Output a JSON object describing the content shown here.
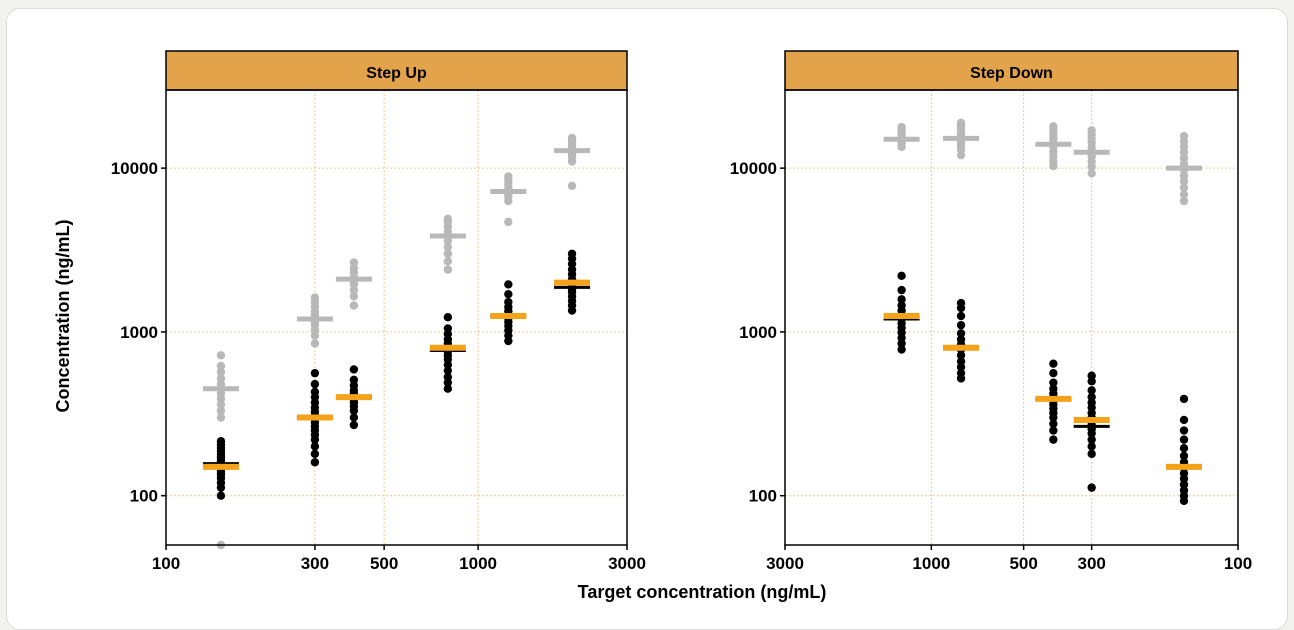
{
  "colors": {
    "strip": "#e2a34a",
    "grid": "#f0c78d",
    "black": "#000000",
    "grey": "#b8b8b8",
    "median_orange": "#f5a21b"
  },
  "axes": {
    "xlabel": "Target concentration (ng/mL)",
    "ylabel": "Concentration (ng/mL)"
  },
  "chart_data": [
    {
      "type": "scatter",
      "title": "Step Up",
      "x_scale": "log",
      "y_scale": "log",
      "xlim": [
        100,
        3000
      ],
      "ylim": [
        50,
        30000
      ],
      "x_ticks": [
        100,
        300,
        500,
        1000,
        3000
      ],
      "y_ticks": [
        100,
        1000,
        10000
      ],
      "grid": true,
      "groups": [
        {
          "target": 150,
          "black_points": [
            100,
            112,
            120,
            128,
            135,
            140,
            145,
            150,
            155,
            160,
            165,
            172,
            180,
            188,
            196,
            205,
            215
          ],
          "grey_points": [
            50,
            300,
            330,
            360,
            390,
            420,
            450,
            480,
            520,
            570,
            620,
            720
          ],
          "black_median": 157,
          "grey_median": 450,
          "orange_mean": 150
        },
        {
          "target": 300,
          "black_points": [
            160,
            180,
            200,
            220,
            235,
            250,
            265,
            280,
            295,
            310,
            325,
            345,
            370,
            400,
            430,
            480,
            560
          ],
          "grey_points": [
            850,
            950,
            1030,
            1100,
            1150,
            1200,
            1260,
            1330,
            1420,
            1520,
            1620
          ],
          "black_median": 300,
          "grey_median": 1200,
          "orange_mean": 300
        },
        {
          "target": 400,
          "black_points": [
            270,
            300,
            330,
            350,
            370,
            385,
            400,
            420,
            440,
            470,
            510,
            590
          ],
          "grey_points": [
            1450,
            1650,
            1800,
            1950,
            2050,
            2150,
            2300,
            2450,
            2650
          ],
          "black_median": 400,
          "grey_median": 2100,
          "orange_mean": 400
        },
        {
          "target": 800,
          "black_points": [
            450,
            490,
            530,
            580,
            630,
            680,
            720,
            760,
            800,
            850,
            900,
            970,
            1050,
            1230
          ],
          "grey_points": [
            2400,
            2700,
            3000,
            3300,
            3600,
            3850,
            4100,
            4400,
            4700,
            4900
          ],
          "black_median": 770,
          "grey_median": 3850,
          "orange_mean": 800
        },
        {
          "target": 1250,
          "black_points": [
            880,
            950,
            1020,
            1090,
            1150,
            1210,
            1270,
            1340,
            1420,
            1520,
            1700,
            1950
          ],
          "grey_points": [
            4700,
            6300,
            6700,
            7000,
            7300,
            7600,
            8000,
            8500,
            8900
          ],
          "black_median": 1250,
          "grey_median": 7200,
          "orange_mean": 1250
        },
        {
          "target": 2000,
          "black_points": [
            1350,
            1450,
            1550,
            1650,
            1750,
            1830,
            1900,
            2000,
            2100,
            2250,
            2400,
            2600,
            2800,
            3000
          ],
          "grey_points": [
            7800,
            11000,
            11700,
            12300,
            12900,
            13400,
            14000,
            14700,
            15300
          ],
          "black_median": 1870,
          "grey_median": 12800,
          "orange_mean": 2000
        }
      ]
    },
    {
      "type": "scatter",
      "title": "Step Down",
      "x_scale": "log",
      "y_scale": "log",
      "x_reversed": true,
      "xlim": [
        3000,
        100
      ],
      "ylim": [
        50,
        30000
      ],
      "x_ticks": [
        3000,
        1000,
        500,
        300,
        100
      ],
      "y_ticks": [
        100,
        1000,
        10000
      ],
      "grid": true,
      "groups": [
        {
          "target": 1250,
          "black_points": [
            780,
            850,
            920,
            990,
            1060,
            1130,
            1200,
            1270,
            1350,
            1450,
            1580,
            1800,
            2200
          ],
          "grey_points": [
            13500,
            14200,
            14800,
            15300,
            15800,
            16400,
            17200,
            17800
          ],
          "black_median": 1200,
          "grey_median": 15000,
          "orange_mean": 1250
        },
        {
          "target": 800,
          "black_points": [
            520,
            560,
            610,
            660,
            720,
            780,
            840,
            900,
            980,
            1100,
            1250,
            1400,
            1500
          ],
          "grey_points": [
            12000,
            13000,
            13800,
            14500,
            15200,
            15900,
            16700,
            17500,
            18300,
            18900
          ],
          "black_median": 800,
          "grey_median": 15200,
          "orange_mean": 800
        },
        {
          "target": 400,
          "black_points": [
            220,
            250,
            275,
            300,
            320,
            340,
            360,
            380,
            400,
            420,
            450,
            490,
            560,
            640
          ],
          "grey_points": [
            10300,
            11000,
            11800,
            12600,
            13500,
            14300,
            15200,
            16000,
            17000,
            18000
          ],
          "black_median": 385,
          "grey_median": 14000,
          "orange_mean": 390
        },
        {
          "target": 300,
          "black_points": [
            112,
            180,
            200,
            220,
            240,
            255,
            270,
            285,
            300,
            320,
            345,
            370,
            400,
            440,
            500,
            540
          ],
          "grey_points": [
            9300,
            10200,
            11000,
            11800,
            12600,
            13400,
            14300,
            15200,
            16100,
            17000
          ],
          "black_median": 265,
          "grey_median": 12500,
          "orange_mean": 290
        },
        {
          "target": 150,
          "black_points": [
            93,
            100,
            108,
            117,
            127,
            137,
            148,
            160,
            175,
            195,
            220,
            250,
            290,
            390
          ],
          "grey_points": [
            6300,
            6900,
            7600,
            8300,
            9000,
            9800,
            10600,
            11500,
            12500,
            13500,
            14500,
            15700
          ],
          "black_median": 152,
          "grey_median": 10000,
          "orange_mean": 150
        }
      ]
    }
  ]
}
